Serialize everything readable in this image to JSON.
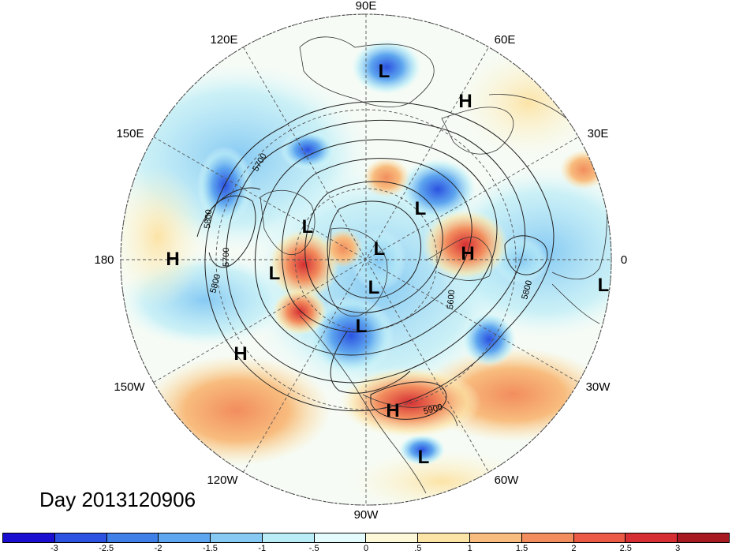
{
  "title": "Day 2013120906",
  "lon_labels": [
    {
      "name": "lon-label-90e",
      "text": "90E"
    },
    {
      "name": "lon-label-60e",
      "text": "60E"
    },
    {
      "name": "lon-label-30e",
      "text": "30E"
    },
    {
      "name": "lon-label-0",
      "text": "0"
    },
    {
      "name": "lon-label-30w",
      "text": "30W"
    },
    {
      "name": "lon-label-60w",
      "text": "60W"
    },
    {
      "name": "lon-label-90w",
      "text": "90W"
    },
    {
      "name": "lon-label-120w",
      "text": "120W"
    },
    {
      "name": "lon-label-150w",
      "text": "150W"
    },
    {
      "name": "lon-label-180",
      "text": "180"
    },
    {
      "name": "lon-label-150e",
      "text": "150E"
    },
    {
      "name": "lon-label-120e",
      "text": "120E"
    }
  ],
  "pressure_systems": [
    {
      "type": "L",
      "name": "low-siberia"
    },
    {
      "type": "H",
      "name": "high-urals"
    },
    {
      "type": "L",
      "name": "low-arctic-asia"
    },
    {
      "type": "L",
      "name": "low-east-siberia"
    },
    {
      "type": "L",
      "name": "low-pole"
    },
    {
      "type": "L",
      "name": "low-arctic-canada"
    },
    {
      "type": "L",
      "name": "low-hudson"
    },
    {
      "type": "L",
      "name": "low-alaska-gulf"
    },
    {
      "type": "H",
      "name": "high-dateline"
    },
    {
      "type": "H",
      "name": "high-north-pacific"
    },
    {
      "type": "H",
      "name": "high-scandinavia"
    },
    {
      "type": "L",
      "name": "low-west-africa"
    },
    {
      "type": "H",
      "name": "high-gulf-of-mexico"
    },
    {
      "type": "L",
      "name": "low-caribbean"
    }
  ],
  "contour_labels": [
    {
      "name": "contour-label-5700-a",
      "text": "5700"
    },
    {
      "name": "contour-label-5800-a",
      "text": "5800"
    },
    {
      "name": "contour-label-5700-b",
      "text": "5700"
    },
    {
      "name": "contour-label-5800-b",
      "text": "5800"
    },
    {
      "name": "contour-label-5600",
      "text": "5600"
    },
    {
      "name": "contour-label-5800-c",
      "text": "5800"
    },
    {
      "name": "contour-label-5900",
      "text": "5900"
    }
  ],
  "colorbar": {
    "colors": [
      "#1a0ed1",
      "#2b52e0",
      "#3f7fe8",
      "#5ea6ef",
      "#86c9f3",
      "#b9ecf7",
      "#e4fbfd",
      "#fdf8d7",
      "#fce3a6",
      "#f8bc7e",
      "#f28d5e",
      "#ea5a45",
      "#d62f33",
      "#a81a22"
    ],
    "tick_labels": [
      "-3",
      "-2.5",
      "-2",
      "-1.5",
      "-1",
      "-.5",
      "0",
      ".5",
      "1",
      "1.5",
      "2",
      "2.5",
      "3"
    ]
  }
}
